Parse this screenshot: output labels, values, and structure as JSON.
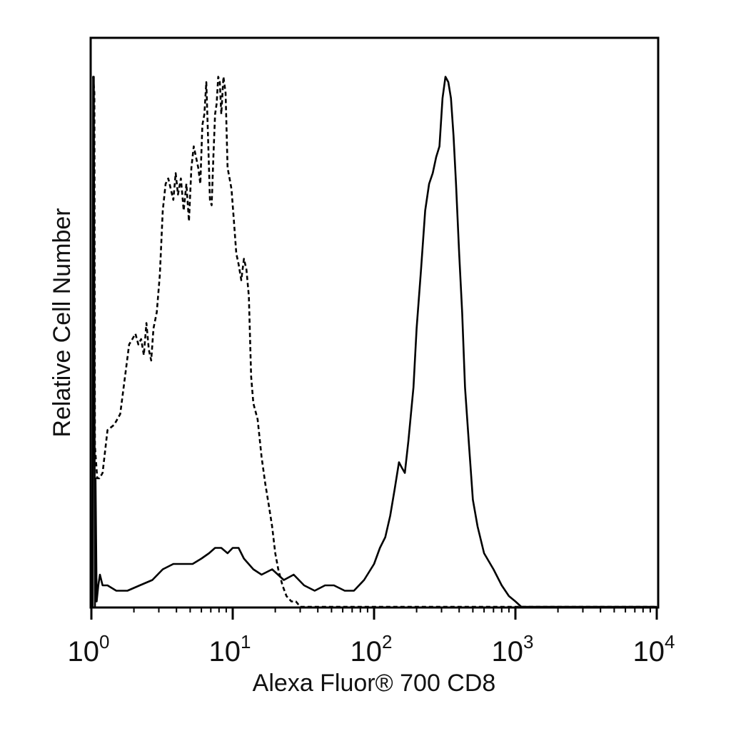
{
  "chart_data": {
    "type": "line",
    "title": "",
    "xlabel": "Alexa Fluor® 700 CD8",
    "ylabel": "Relative Cell Number",
    "x_scale": "log",
    "xlim": [
      1,
      10000
    ],
    "ylim": [
      0,
      100
    ],
    "grid": false,
    "legend": "none",
    "x_ticks": [
      {
        "base": "10",
        "exp": "0",
        "value": 1
      },
      {
        "base": "10",
        "exp": "1",
        "value": 10
      },
      {
        "base": "10",
        "exp": "2",
        "value": 100
      },
      {
        "base": "10",
        "exp": "3",
        "value": 1000
      },
      {
        "base": "10",
        "exp": "4",
        "value": 10000
      }
    ],
    "series": [
      {
        "style": "dashed",
        "color": "#000000",
        "x": [
          1.03,
          1.05,
          1.06,
          1.1,
          1.14,
          1.2,
          1.3,
          1.45,
          1.6,
          1.75,
          1.85,
          1.95,
          2.05,
          2.15,
          2.25,
          2.35,
          2.45,
          2.55,
          2.65,
          2.75,
          2.9,
          3.05,
          3.2,
          3.35,
          3.5,
          3.65,
          3.8,
          3.95,
          4.1,
          4.3,
          4.5,
          4.7,
          4.9,
          5.1,
          5.3,
          5.5,
          5.7,
          5.9,
          6.1,
          6.3,
          6.5,
          6.7,
          6.9,
          7.1,
          7.3,
          7.5,
          7.7,
          7.9,
          8.1,
          8.3,
          8.6,
          8.9,
          9.2,
          9.5,
          9.8,
          10.2,
          10.6,
          11.0,
          11.5,
          12.0,
          12.5,
          13.0,
          13.5,
          14.0,
          15.0,
          16.0,
          17.0,
          18.0,
          19.0,
          20.0,
          21.0,
          22.5,
          24.0,
          26.0,
          28.0,
          30.0,
          33.0,
          36.0,
          40.0,
          45.0,
          55.0,
          70.0,
          100,
          150,
          200,
          300,
          500,
          700,
          1000,
          1200,
          2000,
          4000,
          10000
        ],
        "y": [
          99,
          96,
          30,
          24,
          24,
          25,
          33,
          34,
          36,
          44,
          49,
          50,
          51,
          49,
          50,
          47,
          53,
          48,
          46,
          52,
          55,
          62,
          74,
          79,
          80,
          78,
          76,
          81,
          77,
          80,
          74,
          79,
          72,
          82,
          86,
          84,
          82,
          79,
          90,
          92,
          98,
          87,
          76,
          75,
          84,
          92,
          94,
          99,
          98,
          92,
          99,
          96,
          82,
          80,
          78,
          72,
          66,
          64,
          61,
          65,
          63,
          58,
          43,
          38,
          35,
          28,
          23,
          19,
          15,
          10,
          7,
          4,
          2,
          1,
          1,
          0,
          0,
          0,
          0,
          0,
          0,
          0,
          0,
          0,
          0,
          0,
          0,
          0,
          0,
          0,
          0,
          0,
          0
        ]
      },
      {
        "style": "solid",
        "color": "#000000",
        "x": [
          1.02,
          1.03,
          1.04,
          1.06,
          1.07,
          1.09,
          1.12,
          1.15,
          1.2,
          1.3,
          1.5,
          1.8,
          2.2,
          2.7,
          3.2,
          3.8,
          4.4,
          5.2,
          6.0,
          6.8,
          7.5,
          8.3,
          9.2,
          10.0,
          11.0,
          12.0,
          14.0,
          16.0,
          19.0,
          23.0,
          27.0,
          32.0,
          38.0,
          45.0,
          52.0,
          62.0,
          72.0,
          85.0,
          100,
          110,
          120,
          130,
          140,
          150,
          157,
          165,
          175,
          190,
          200,
          215,
          230,
          245,
          260,
          275,
          290,
          305,
          320,
          335,
          350,
          365,
          380,
          400,
          420,
          440,
          470,
          500,
          540,
          600,
          700,
          800,
          900,
          1000,
          1100,
          1200,
          1500,
          2000,
          4000,
          10000
        ],
        "y": [
          0,
          99,
          99,
          0,
          24,
          1,
          4,
          6,
          4,
          4,
          3,
          3,
          4,
          5,
          7,
          8,
          8,
          8,
          9,
          10,
          11,
          11,
          10,
          11,
          11,
          9,
          7,
          6,
          7,
          5,
          6,
          4,
          3,
          4,
          4,
          3,
          3,
          5,
          8,
          11,
          13,
          17,
          22,
          27,
          26,
          25,
          31,
          41,
          52,
          63,
          74,
          79,
          81,
          84,
          86,
          95,
          99,
          98,
          95,
          88,
          79,
          66,
          55,
          41,
          30,
          20,
          15,
          10,
          7,
          4,
          2,
          1,
          0,
          0,
          0,
          0,
          0,
          0
        ]
      }
    ]
  }
}
